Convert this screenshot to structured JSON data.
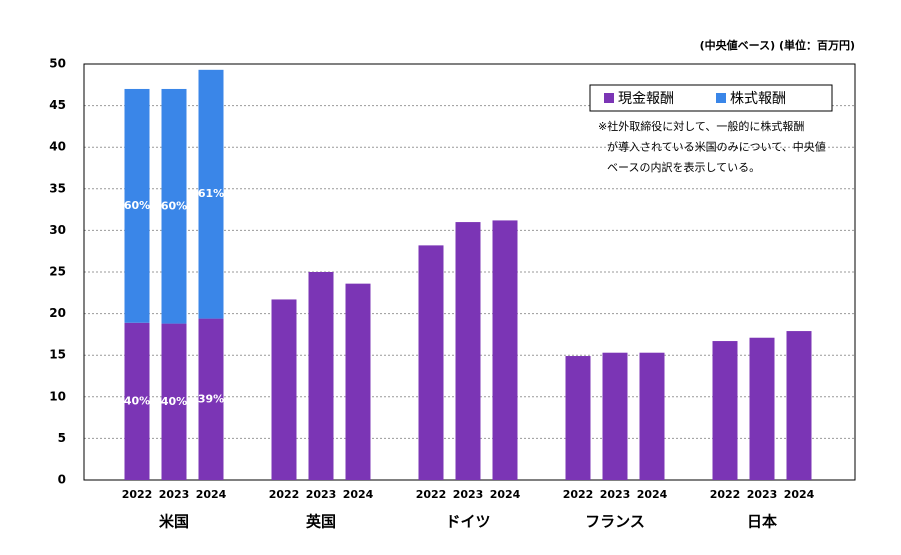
{
  "chart_data": {
    "type": "stacked-grouped-bar",
    "unit_note": "(中央値ベース) (単位：百万円)",
    "groups": [
      "米国",
      "英国",
      "ドイツ",
      "フランス",
      "日本"
    ],
    "categories": [
      "2022",
      "2023",
      "2024",
      "2022",
      "2023",
      "2024",
      "2022",
      "2023",
      "2024",
      "2022",
      "2023",
      "2024",
      "2022",
      "2023",
      "2024"
    ],
    "series": [
      {
        "name": "現金報酬",
        "color": "#7b35b5",
        "values": [
          18.9,
          18.8,
          19.4,
          21.7,
          25.0,
          23.6,
          28.2,
          31.0,
          31.2,
          14.9,
          15.3,
          15.3,
          16.7,
          17.1,
          17.9
        ],
        "percent_labels": [
          "40%",
          "40%",
          "39%",
          null,
          null,
          null,
          null,
          null,
          null,
          null,
          null,
          null,
          null,
          null,
          null
        ]
      },
      {
        "name": "株式報酬",
        "color": "#3a86e8",
        "values": [
          28.1,
          28.2,
          29.9,
          null,
          null,
          null,
          null,
          null,
          null,
          null,
          null,
          null,
          null,
          null,
          null
        ],
        "percent_labels": [
          "60%",
          "60%",
          "61%",
          null,
          null,
          null,
          null,
          null,
          null,
          null,
          null,
          null,
          null,
          null,
          null
        ]
      }
    ],
    "ylim": [
      0,
      50
    ],
    "yticks": [
      0,
      5,
      10,
      15,
      20,
      25,
      30,
      35,
      40,
      45,
      50
    ],
    "grid": true,
    "note_lines": [
      "※社外取締役に対して、一般的に株式報酬",
      "が導入されている米国のみについて、中央値",
      "ベースの内訳を表示している。"
    ]
  }
}
